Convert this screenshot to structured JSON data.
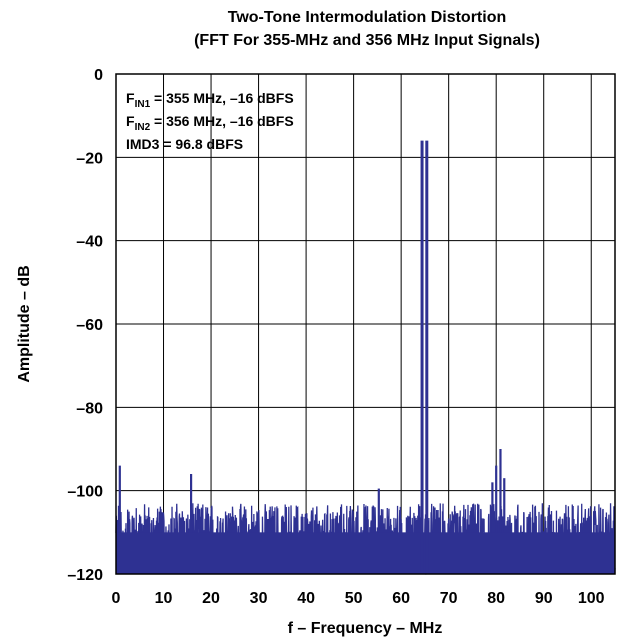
{
  "chart_data": {
    "type": "line",
    "title": "Two-Tone Intermodulation Distortion",
    "subtitle": "(FFT For 355-MHz and 356 MHz Input Signals)",
    "xlabel": "f – Frequency – MHz",
    "ylabel": "Amplitude – dB",
    "xlim": [
      0,
      105
    ],
    "ylim": [
      -120,
      0
    ],
    "x_ticks": [
      "0",
      "10",
      "20",
      "30",
      "40",
      "50",
      "60",
      "70",
      "80",
      "90",
      "100"
    ],
    "y_ticks": [
      "0",
      "–20",
      "–40",
      "–60",
      "–80",
      "–100",
      "–120"
    ],
    "grid": true,
    "annotations": [
      {
        "main": "F",
        "sub": "IN1",
        "rest": " = 355 MHz, –16 dBFS"
      },
      {
        "main": "F",
        "sub": "IN2",
        "rest": " = 356 MHz, –16 dBFS"
      },
      {
        "main": "IMD3 = 96.8 dBFS",
        "sub": "",
        "rest": ""
      }
    ],
    "noise_floor": {
      "range_db": [
        -120,
        -103
      ]
    },
    "spurs": [
      {
        "x": 0.8,
        "y": -94
      },
      {
        "x": 15.8,
        "y": -96
      },
      {
        "x": 55.3,
        "y": -99.5
      },
      {
        "x": 79.2,
        "y": -98
      },
      {
        "x": 80.0,
        "y": -94
      },
      {
        "x": 80.9,
        "y": -90
      },
      {
        "x": 81.7,
        "y": -97
      }
    ],
    "tones": [
      {
        "x": 64.4,
        "y": -16
      },
      {
        "x": 65.4,
        "y": -16
      }
    ],
    "colors": {
      "trace": "#2e3192",
      "grid": "#000000",
      "frame": "#000000"
    }
  }
}
